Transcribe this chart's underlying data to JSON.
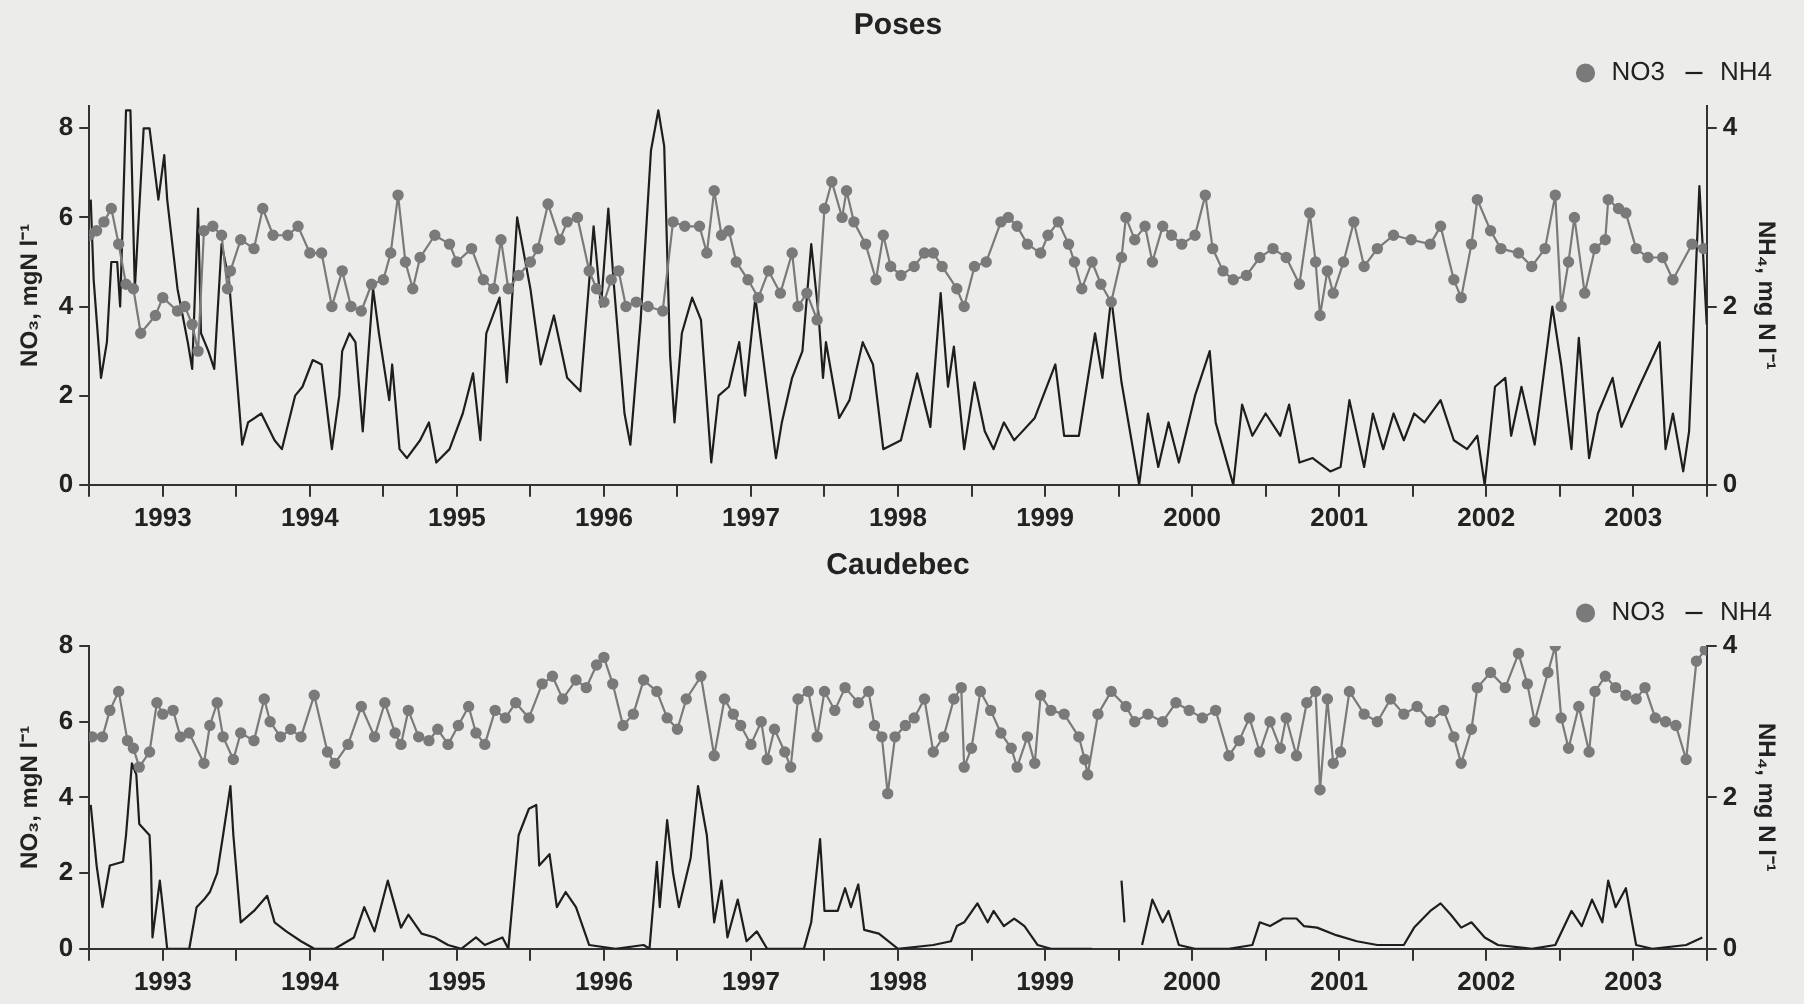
{
  "chart_data": [
    {
      "type": "line",
      "title": "Poses",
      "ylabel": "NO₃, mgN l⁻¹",
      "y2label": "NH₄, mg N l⁻¹",
      "xlim": [
        1992.5,
        2003.5
      ],
      "xticks": [
        {
          "value": 1992.5,
          "label": null
        },
        1993,
        {
          "value": 1993.5,
          "label": null
        },
        1994,
        {
          "value": 1994.5,
          "label": null
        },
        1995,
        {
          "value": 1995.5,
          "label": null
        },
        1996,
        {
          "value": 1996.5,
          "label": null
        },
        1997,
        {
          "value": 1997.5,
          "label": null
        },
        1998,
        {
          "value": 1998.5,
          "label": null
        },
        1999,
        {
          "value": 1999.5,
          "label": null
        },
        2000,
        {
          "value": 2000.5,
          "label": null
        },
        2001,
        {
          "value": 2001.5,
          "label": null
        },
        2002,
        {
          "value": 2002.5,
          "label": null
        },
        2003,
        {
          "value": 2003.5,
          "label": null
        }
      ],
      "ylim": [
        0,
        8.5
      ],
      "yticks": [
        0,
        2,
        4,
        6,
        8
      ],
      "y2lim": [
        0,
        4.25
      ],
      "y2ticks": [
        0,
        2,
        4
      ],
      "legend": "top right",
      "grid": false,
      "series": [
        {
          "name": "NO3",
          "color": "#7a7a7a",
          "marker": "circle",
          "x": [
            1992.5,
            1992.55,
            1992.6,
            1992.65,
            1992.7,
            1992.75,
            1992.8,
            1992.85,
            1992.95,
            1993.0,
            1993.1,
            1993.15,
            1993.2,
            1993.24,
            1993.28,
            1993.34,
            1993.4,
            1993.44,
            1993.46,
            1993.53,
            1993.62,
            1993.68,
            1993.75,
            1993.85,
            1993.92,
            1994.0,
            1994.08,
            1994.15,
            1994.22,
            1994.28,
            1994.35,
            1994.42,
            1994.5,
            1994.55,
            1994.6,
            1994.65,
            1994.7,
            1994.75,
            1994.85,
            1994.95,
            1995.0,
            1995.1,
            1995.18,
            1995.25,
            1995.3,
            1995.35,
            1995.42,
            1995.5,
            1995.55,
            1995.62,
            1995.7,
            1995.75,
            1995.82,
            1995.9,
            1995.95,
            1996.0,
            1996.05,
            1996.1,
            1996.15,
            1996.22,
            1996.3,
            1996.4,
            1996.47,
            1996.55,
            1996.65,
            1996.7,
            1996.75,
            1996.8,
            1996.85,
            1996.9,
            1996.98,
            1997.05,
            1997.12,
            1997.2,
            1997.28,
            1997.32,
            1997.38,
            1997.45,
            1997.5,
            1997.55,
            1997.62,
            1997.65,
            1997.7,
            1997.78,
            1997.85,
            1997.9,
            1997.95,
            1998.02,
            1998.11,
            1998.18,
            1998.24,
            1998.3,
            1998.4,
            1998.45,
            1998.52,
            1998.6,
            1998.7,
            1998.75,
            1998.81,
            1998.88,
            1998.97,
            1999.02,
            1999.09,
            1999.16,
            1999.2,
            1999.25,
            1999.32,
            1999.38,
            1999.45,
            1999.52,
            1999.55,
            1999.61,
            1999.68,
            1999.73,
            1999.8,
            1999.86,
            1999.93,
            2000.02,
            2000.09,
            2000.14,
            2000.21,
            2000.28,
            2000.37,
            2000.46,
            2000.55,
            2000.64,
            2000.73,
            2000.8,
            2000.84,
            2000.87,
            2000.92,
            2000.96,
            2001.03,
            2001.1,
            2001.17,
            2001.26,
            2001.37,
            2001.49,
            2001.62,
            2001.69,
            2001.78,
            2001.83,
            2001.9,
            2001.94,
            2002.03,
            2002.1,
            2002.22,
            2002.31,
            2002.4,
            2002.47,
            2002.51,
            2002.56,
            2002.6,
            2002.67,
            2002.74,
            2002.81,
            2002.83,
            2002.9,
            2002.95,
            2003.02,
            2003.1,
            2003.2,
            2003.27,
            2003.4,
            2003.48
          ],
          "values": [
            5.6,
            5.7,
            5.9,
            6.2,
            5.4,
            4.5,
            4.4,
            3.4,
            3.8,
            4.2,
            3.9,
            4.0,
            3.6,
            3.0,
            5.7,
            5.8,
            5.6,
            4.4,
            4.8,
            5.5,
            5.3,
            6.2,
            5.6,
            5.6,
            5.8,
            5.2,
            5.2,
            4.0,
            4.8,
            4.0,
            3.9,
            4.5,
            4.6,
            5.2,
            6.5,
            5.0,
            4.4,
            5.1,
            5.6,
            5.4,
            5.0,
            5.3,
            4.6,
            4.4,
            5.5,
            4.4,
            4.7,
            5.0,
            5.3,
            6.3,
            5.5,
            5.9,
            6.0,
            4.8,
            4.4,
            4.1,
            4.6,
            4.8,
            4.0,
            4.1,
            4.0,
            3.9,
            5.9,
            5.8,
            5.8,
            5.2,
            6.6,
            5.6,
            5.7,
            5.0,
            4.6,
            4.2,
            4.8,
            4.3,
            5.2,
            4.0,
            4.3,
            3.7,
            6.2,
            6.8,
            6.0,
            6.6,
            5.9,
            5.4,
            4.6,
            5.6,
            4.9,
            4.7,
            4.9,
            5.2,
            5.2,
            4.9,
            4.4,
            4.0,
            4.9,
            5.0,
            5.9,
            6.0,
            5.8,
            5.4,
            5.2,
            5.6,
            5.9,
            5.4,
            5.0,
            4.4,
            5.0,
            4.5,
            4.1,
            5.1,
            6.0,
            5.5,
            5.8,
            5.0,
            5.8,
            5.6,
            5.4,
            5.6,
            6.5,
            5.3,
            4.8,
            4.6,
            4.7,
            5.1,
            5.3,
            5.1,
            4.5,
            6.1,
            5.0,
            3.8,
            4.8,
            4.3,
            5.0,
            5.9,
            4.9,
            5.3,
            5.6,
            5.5,
            5.4,
            5.8,
            4.6,
            4.2,
            5.4,
            6.4,
            5.7,
            5.3,
            5.2,
            4.9,
            5.3,
            6.5,
            4.0,
            5.0,
            6.0,
            4.3,
            5.3,
            5.5,
            6.4,
            6.2,
            6.1,
            5.3,
            5.1,
            5.1,
            4.6,
            5.4,
            5.3
          ]
        },
        {
          "name": "NH4",
          "color": "#1e1e1e",
          "marker": "none",
          "axis": "y2",
          "x": [
            1992.51,
            1992.53,
            1992.58,
            1992.62,
            1992.65,
            1992.69,
            1992.71,
            1992.75,
            1992.78,
            1992.81,
            1992.87,
            1992.91,
            1992.97,
            1993.01,
            1993.03,
            1993.1,
            1993.17,
            1993.2,
            1993.24,
            1993.26,
            1993.31,
            1993.35,
            1993.4,
            1993.45,
            1993.54,
            1993.58,
            1993.67,
            1993.76,
            1993.81,
            1993.9,
            1993.95,
            1994.02,
            1994.08,
            1994.15,
            1994.2,
            1994.22,
            1994.27,
            1994.31,
            1994.36,
            1994.43,
            1994.47,
            1994.54,
            1994.56,
            1994.61,
            1994.66,
            1994.75,
            1994.81,
            1994.86,
            1994.95,
            1995.04,
            1995.11,
            1995.16,
            1995.2,
            1995.29,
            1995.34,
            1995.41,
            1995.5,
            1995.57,
            1995.66,
            1995.75,
            1995.84,
            1995.93,
            1995.98,
            1996.03,
            1996.07,
            1996.14,
            1996.18,
            1996.25,
            1996.32,
            1996.37,
            1996.41,
            1996.45,
            1996.48,
            1996.53,
            1996.6,
            1996.66,
            1996.73,
            1996.78,
            1996.85,
            1996.92,
            1996.96,
            1997.03,
            1997.1,
            1997.17,
            1997.21,
            1997.28,
            1997.35,
            1997.41,
            1997.46,
            1997.49,
            1997.51,
            1997.6,
            1997.67,
            1997.76,
            1997.83,
            1997.9,
            1998.02,
            1998.13,
            1998.22,
            1998.29,
            1998.34,
            1998.38,
            1998.45,
            1998.52,
            1998.59,
            1998.65,
            1998.72,
            1998.79,
            1998.93,
            1999.07,
            1999.13,
            1999.23,
            1999.34,
            1999.39,
            1999.45,
            1999.52,
            1999.64,
            1999.7,
            1999.77,
            1999.84,
            1999.91,
            2000.02,
            2000.12,
            2000.16,
            2000.28,
            2000.34,
            2000.41,
            2000.5,
            2000.6,
            2000.66,
            2000.73,
            2000.82,
            2000.94,
            2001.01,
            2001.07,
            2001.17,
            2001.23,
            2001.3,
            2001.37,
            2001.44,
            2001.51,
            2001.58,
            2001.69,
            2001.78,
            2001.87,
            2001.94,
            2001.99,
            2002.06,
            2002.13,
            2002.17,
            2002.24,
            2002.33,
            2002.45,
            2002.51,
            2002.58,
            2002.63,
            2002.7,
            2002.76,
            2002.86,
            2002.92,
            2003.04,
            2003.18,
            2003.22,
            2003.27,
            2003.34,
            2003.38,
            2003.45,
            2003.47,
            2003.5
          ],
          "values": [
            3.2,
            2.3,
            1.2,
            1.6,
            2.5,
            2.5,
            2.0,
            4.2,
            4.2,
            2.2,
            4.0,
            4.0,
            3.2,
            3.7,
            3.2,
            2.2,
            1.6,
            1.3,
            3.1,
            1.7,
            1.5,
            1.3,
            2.7,
            2.3,
            0.45,
            0.7,
            0.8,
            0.5,
            0.4,
            1.0,
            1.1,
            1.4,
            1.35,
            0.4,
            1.0,
            1.5,
            1.7,
            1.6,
            0.6,
            2.2,
            1.7,
            0.95,
            1.35,
            0.4,
            0.3,
            0.5,
            0.7,
            0.25,
            0.4,
            0.8,
            1.25,
            0.5,
            1.7,
            2.1,
            1.15,
            3.0,
            2.2,
            1.35,
            1.9,
            1.2,
            1.05,
            2.9,
            2.0,
            3.1,
            2.2,
            0.8,
            0.45,
            1.85,
            3.75,
            4.2,
            3.8,
            1.45,
            0.7,
            1.7,
            2.1,
            1.85,
            0.25,
            1.0,
            1.1,
            1.6,
            1.0,
            2.1,
            1.2,
            0.3,
            0.7,
            1.2,
            1.5,
            2.7,
            1.9,
            1.2,
            1.6,
            0.75,
            0.95,
            1.6,
            1.35,
            0.4,
            0.5,
            1.25,
            0.65,
            2.15,
            1.1,
            1.55,
            0.4,
            1.15,
            0.6,
            0.4,
            0.7,
            0.5,
            0.75,
            1.35,
            0.55,
            0.55,
            1.7,
            1.2,
            2.1,
            1.15,
            0.0,
            0.8,
            0.2,
            0.7,
            0.25,
            1.0,
            1.5,
            0.7,
            0.0,
            0.9,
            0.55,
            0.8,
            0.55,
            0.9,
            0.25,
            0.3,
            0.15,
            0.2,
            0.95,
            0.2,
            0.8,
            0.4,
            0.8,
            0.5,
            0.8,
            0.7,
            0.95,
            0.5,
            0.4,
            0.55,
            0.0,
            1.1,
            1.2,
            0.55,
            1.1,
            0.45,
            2.0,
            1.35,
            0.4,
            1.65,
            0.3,
            0.8,
            1.2,
            0.65,
            1.1,
            1.6,
            0.4,
            0.8,
            0.15,
            0.6,
            3.35,
            2.75,
            1.8
          ]
        }
      ]
    },
    {
      "type": "line",
      "title": "Caudebec",
      "ylabel": "NO₃, mgN l⁻¹",
      "y2label": "NH₄, mg N l⁻¹",
      "xlim": [
        1992.5,
        2003.5
      ],
      "xticks": [
        {
          "value": 1992.5,
          "label": null
        },
        1993,
        {
          "value": 1993.5,
          "label": null
        },
        1994,
        {
          "value": 1994.5,
          "label": null
        },
        1995,
        {
          "value": 1995.5,
          "label": null
        },
        1996,
        {
          "value": 1996.5,
          "label": null
        },
        1997,
        {
          "value": 1997.5,
          "label": null
        },
        1998,
        {
          "value": 1998.5,
          "label": null
        },
        1999,
        {
          "value": 1999.5,
          "label": null
        },
        2000,
        {
          "value": 2000.5,
          "label": null
        },
        2001,
        {
          "value": 2001.5,
          "label": null
        },
        2002,
        {
          "value": 2002.5,
          "label": null
        },
        2003,
        {
          "value": 2003.5,
          "label": null
        }
      ],
      "ylim": [
        0,
        8
      ],
      "yticks": [
        0,
        2,
        4,
        6,
        8
      ],
      "y2lim": [
        0,
        4
      ],
      "y2ticks": [
        0,
        2,
        4
      ],
      "legend": "top right",
      "grid": false,
      "series": [
        {
          "name": "NO3",
          "color": "#7a7a7a",
          "marker": "circle",
          "x": [
            1992.52,
            1992.59,
            1992.64,
            1992.7,
            1992.76,
            1992.8,
            1992.84,
            1992.91,
            1992.96,
            1993.0,
            1993.07,
            1993.12,
            1993.18,
            1993.28,
            1993.32,
            1993.37,
            1993.41,
            1993.48,
            1993.53,
            1993.62,
            1993.69,
            1993.73,
            1993.8,
            1993.87,
            1993.94,
            1994.03,
            1994.12,
            1994.17,
            1994.26,
            1994.35,
            1994.44,
            1994.51,
            1994.58,
            1994.62,
            1994.67,
            1994.74,
            1994.81,
            1994.87,
            1994.94,
            1995.01,
            1995.08,
            1995.13,
            1995.19,
            1995.26,
            1995.33,
            1995.4,
            1995.49,
            1995.58,
            1995.65,
            1995.72,
            1995.81,
            1995.88,
            1995.95,
            1996.0,
            1996.06,
            1996.13,
            1996.2,
            1996.27,
            1996.36,
            1996.43,
            1996.5,
            1996.56,
            1996.66,
            1996.75,
            1996.82,
            1996.88,
            1996.93,
            1997.0,
            1997.07,
            1997.11,
            1997.16,
            1997.23,
            1997.27,
            1997.32,
            1997.39,
            1997.45,
            1997.5,
            1997.57,
            1997.64,
            1997.73,
            1997.8,
            1997.84,
            1997.89,
            1997.93,
            1997.98,
            1998.05,
            1998.11,
            1998.18,
            1998.24,
            1998.31,
            1998.38,
            1998.43,
            1998.45,
            1998.5,
            1998.56,
            1998.63,
            1998.7,
            1998.77,
            1998.81,
            1998.88,
            1998.93,
            1998.97,
            1999.04,
            1999.13,
            1999.23,
            1999.27,
            1999.29,
            1999.36,
            1999.45,
            1999.55,
            1999.61,
            1999.7,
            1999.8,
            1999.89,
            1999.98,
            2000.07,
            2000.16,
            2000.25,
            2000.32,
            2000.39,
            2000.46,
            2000.53,
            2000.6,
            2000.64,
            2000.71,
            2000.78,
            2000.84,
            2000.87,
            2000.92,
            2000.96,
            2001.01,
            2001.07,
            2001.17,
            2001.26,
            2001.35,
            2001.44,
            2001.53,
            2001.62,
            2001.71,
            2001.78,
            2001.83,
            2001.9,
            2001.94,
            2002.03,
            2002.13,
            2002.22,
            2002.28,
            2002.33,
            2002.42,
            2002.47,
            2002.51,
            2002.56,
            2002.63,
            2002.7,
            2002.74,
            2002.81,
            2002.88,
            2002.95,
            2003.02,
            2003.08,
            2003.15,
            2003.22,
            2003.29,
            2003.36,
            2003.43,
            2003.49
          ],
          "values": [
            5.6,
            5.6,
            6.3,
            6.8,
            5.5,
            5.3,
            4.8,
            5.2,
            6.5,
            6.2,
            6.3,
            5.6,
            5.7,
            4.9,
            5.9,
            6.5,
            5.6,
            5.0,
            5.7,
            5.5,
            6.6,
            6.0,
            5.6,
            5.8,
            5.6,
            6.7,
            5.2,
            4.9,
            5.4,
            6.4,
            5.6,
            6.5,
            5.7,
            5.4,
            6.3,
            5.6,
            5.5,
            5.8,
            5.4,
            5.9,
            6.4,
            5.7,
            5.4,
            6.3,
            6.1,
            6.5,
            6.1,
            7.0,
            7.2,
            6.6,
            7.1,
            6.9,
            7.5,
            7.7,
            7.0,
            5.9,
            6.2,
            7.1,
            6.8,
            6.1,
            5.8,
            6.6,
            7.2,
            5.1,
            6.6,
            6.2,
            5.9,
            5.4,
            6.0,
            5.0,
            5.8,
            5.2,
            4.8,
            6.6,
            6.8,
            5.6,
            6.8,
            6.3,
            6.9,
            6.5,
            6.8,
            5.9,
            5.6,
            4.1,
            5.6,
            5.9,
            6.1,
            6.6,
            5.2,
            5.6,
            6.6,
            6.9,
            4.8,
            5.3,
            6.8,
            6.3,
            5.7,
            5.3,
            4.8,
            5.6,
            4.9,
            6.7,
            6.3,
            6.2,
            5.6,
            5.0,
            4.6,
            6.2,
            6.8,
            6.4,
            6.0,
            6.2,
            6.0,
            6.5,
            6.3,
            6.1,
            6.3,
            5.1,
            5.5,
            6.1,
            5.2,
            6.0,
            5.3,
            6.1,
            5.1,
            6.5,
            6.8,
            4.2,
            6.6,
            4.9,
            5.2,
            6.8,
            6.2,
            6.0,
            6.6,
            6.2,
            6.4,
            6.0,
            6.3,
            5.6,
            4.9,
            5.8,
            6.9,
            7.3,
            6.9,
            7.8,
            7.0,
            6.0,
            7.3,
            8.0,
            6.1,
            5.3,
            6.4,
            5.2,
            6.8,
            7.2,
            6.9,
            6.7,
            6.6,
            6.9,
            6.1,
            6.0,
            5.9,
            5.0,
            7.6,
            7.9
          ]
        },
        {
          "name": "NH4",
          "color": "#1e1e1e",
          "marker": "none",
          "axis": "y2",
          "x": [
            1992.51,
            1992.55,
            1992.59,
            1992.64,
            1992.73,
            1992.75,
            1992.79,
            1992.82,
            1992.84,
            1992.91,
            1992.92,
            1992.93,
            1992.98,
            1993.0,
            1993.03,
            1993.18,
            1993.23,
            1993.28,
            1993.32,
            1993.37,
            1993.41,
            1993.46,
            1993.48,
            1993.53,
            1993.62,
            1993.71,
            1993.76,
            1993.84,
            1993.94,
            1994.03,
            1994.17,
            1994.3,
            1994.37,
            1994.44,
            1994.53,
            1994.62,
            1994.67,
            1994.76,
            1994.85,
            1994.94,
            1995.03,
            1995.13,
            1995.19,
            1995.31,
            1995.35,
            1995.42,
            1995.49,
            1995.54,
            1995.56,
            1995.63,
            1995.68,
            1995.74,
            1995.81,
            1995.9,
            1996.08,
            1996.27,
            1996.31,
            1996.36,
            1996.38,
            1996.43,
            1996.47,
            1996.51,
            1996.59,
            1996.64,
            1996.7,
            1996.75,
            1996.8,
            1996.84,
            1996.91,
            1996.97,
            1997.04,
            1997.11,
            1997.36,
            1997.41,
            1997.47,
            1997.5,
            1997.59,
            1997.64,
            1997.68,
            1997.73,
            1997.77,
            1997.87,
            1998.0,
            1998.24,
            1998.36,
            1998.4,
            1998.45,
            1998.54,
            1998.61,
            1998.65,
            1998.72,
            1998.79,
            1998.86,
            1998.95,
            1999.04,
            1999.32,
            1999.4,
            1999.52,
            1999.54,
            1999.6,
            1999.66,
            1999.73,
            1999.8,
            1999.84,
            1999.91,
            2000.02,
            2000.25,
            2000.41,
            2000.46,
            2000.53,
            2000.62,
            2000.71,
            2000.76,
            2000.85,
            2000.98,
            2001.12,
            2001.26,
            2001.44,
            2001.51,
            2001.62,
            2001.69,
            2001.76,
            2001.83,
            2001.9,
            2001.99,
            2002.08,
            2002.31,
            2002.47,
            2002.58,
            2002.65,
            2002.72,
            2002.79,
            2002.83,
            2002.88,
            2002.95,
            2003.02,
            2003.13,
            2003.36,
            2003.47
          ],
          "values": [
            1.9,
            1.1,
            0.55,
            1.1,
            1.15,
            1.5,
            2.45,
            2.3,
            1.65,
            1.5,
            1.1,
            0.15,
            0.9,
            0.55,
            0.0,
            0.0,
            0.55,
            0.65,
            0.75,
            1.0,
            1.5,
            2.15,
            1.5,
            0.35,
            0.5,
            0.7,
            0.35,
            0.23,
            0.1,
            0.0,
            0.0,
            0.15,
            0.55,
            0.23,
            0.9,
            0.28,
            0.45,
            0.2,
            0.15,
            0.05,
            0.0,
            0.15,
            0.05,
            0.15,
            0.0,
            1.5,
            1.85,
            1.9,
            1.1,
            1.25,
            0.55,
            0.75,
            0.55,
            0.05,
            0.0,
            0.05,
            0.0,
            1.15,
            0.55,
            1.7,
            1.0,
            0.55,
            1.2,
            2.15,
            1.5,
            0.35,
            0.9,
            0.15,
            0.65,
            0.1,
            0.23,
            0.0,
            0.0,
            0.35,
            1.45,
            0.5,
            0.5,
            0.8,
            0.55,
            0.85,
            0.25,
            0.2,
            0.0,
            0.05,
            0.1,
            0.3,
            0.35,
            0.6,
            0.35,
            0.5,
            0.3,
            0.4,
            0.3,
            0.05,
            0.0,
            0.0,
            null,
            0.9,
            0.35,
            null,
            0.05,
            0.65,
            0.35,
            0.5,
            0.05,
            0.0,
            0.0,
            0.05,
            0.35,
            0.3,
            0.4,
            0.4,
            0.3,
            0.28,
            0.18,
            0.1,
            0.05,
            0.05,
            0.28,
            0.5,
            0.6,
            0.45,
            0.28,
            0.35,
            0.15,
            0.05,
            0.0,
            0.05,
            0.5,
            0.3,
            0.65,
            0.35,
            0.9,
            0.55,
            0.8,
            0.05,
            0.0,
            0.05,
            0.15
          ]
        }
      ]
    }
  ]
}
